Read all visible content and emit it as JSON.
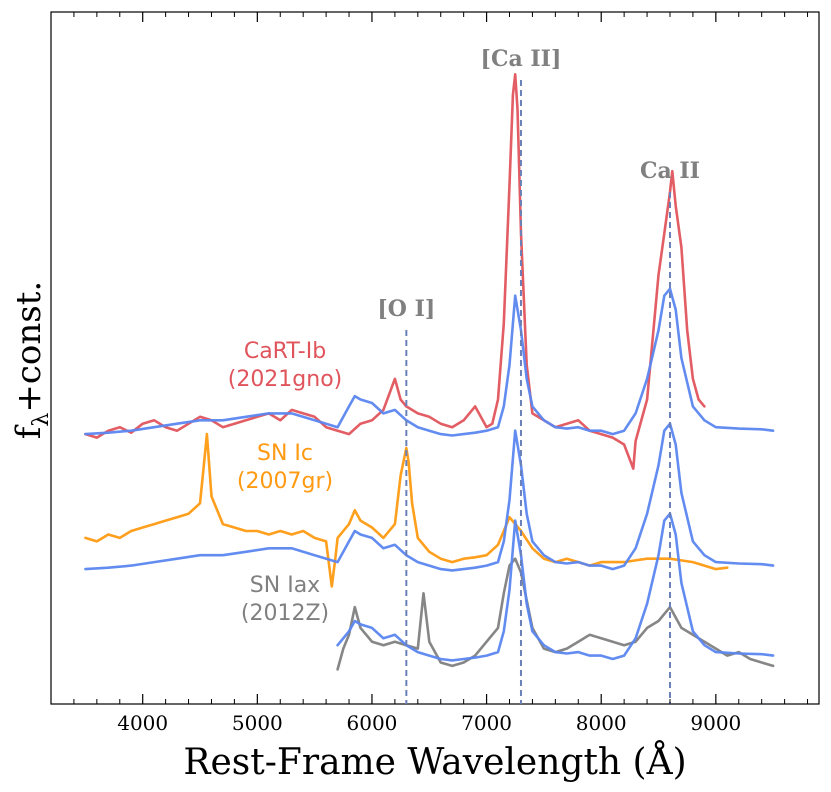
{
  "chart_data": {
    "type": "line",
    "title": "",
    "xlabel": "Rest-Frame Wavelength (Å)",
    "ylabel": "f",
    "ylabel_subscript": "λ",
    "ylabel_suffix": "+const.",
    "xlim": [
      3200,
      9900
    ],
    "ylim": [
      0,
      10
    ],
    "xticks": [
      4000,
      5000,
      6000,
      7000,
      8000,
      9000
    ],
    "xtick_labels": [
      "4000",
      "5000",
      "6000",
      "7000",
      "8000",
      "9000"
    ],
    "colors": {
      "cart": "#e0545c",
      "ic": "#ff9a12",
      "iax": "#808080",
      "model": "#5b86f0",
      "guide": "#6a80b8"
    },
    "line_markers": [
      {
        "label": "[O I]",
        "wavelength": 6300
      },
      {
        "label": "[Ca II]",
        "wavelength": 7300
      },
      {
        "label": "Ca II",
        "wavelength": 8600
      }
    ],
    "labels": [
      {
        "line1": "CaRT-Ib",
        "line2": "(2021gno)",
        "color": "#e0545c"
      },
      {
        "line1": "SN Ic",
        "line2": "(2007gr)",
        "color": "#ff9a12"
      },
      {
        "line1": "SN Iax",
        "line2": "(2012Z)",
        "color": "#808080"
      }
    ],
    "series": [
      {
        "name": "SN 2021gno (CaRT-Ib)",
        "color": "#e0545c",
        "x": [
          3500,
          3600,
          3700,
          3800,
          3900,
          4000,
          4100,
          4200,
          4300,
          4400,
          4500,
          4600,
          4700,
          4800,
          4900,
          5000,
          5100,
          5200,
          5300,
          5400,
          5500,
          5600,
          5700,
          5800,
          5900,
          6000,
          6100,
          6200,
          6250,
          6300,
          6400,
          6500,
          6600,
          6700,
          6800,
          6900,
          7000,
          7050,
          7100,
          7150,
          7200,
          7230,
          7250,
          7270,
          7300,
          7350,
          7400,
          7500,
          7600,
          7700,
          7800,
          7900,
          8000,
          8100,
          8200,
          8280,
          8300,
          8400,
          8450,
          8500,
          8550,
          8600,
          8620,
          8650,
          8700,
          8750,
          8800,
          8850,
          8900
        ],
        "y": [
          3.9,
          3.85,
          3.95,
          4.0,
          3.92,
          4.05,
          4.1,
          4.0,
          3.95,
          4.05,
          4.15,
          4.1,
          4.0,
          4.05,
          4.1,
          4.15,
          4.2,
          4.1,
          4.25,
          4.2,
          4.15,
          4.0,
          3.95,
          3.9,
          4.05,
          4.1,
          4.25,
          4.7,
          4.4,
          4.3,
          4.2,
          4.15,
          4.05,
          4.0,
          4.1,
          4.3,
          4.0,
          4.05,
          4.4,
          5.5,
          7.5,
          8.8,
          9.1,
          8.6,
          6.8,
          4.9,
          4.2,
          4.1,
          4.0,
          4.05,
          4.1,
          3.95,
          3.9,
          3.85,
          3.75,
          3.4,
          3.8,
          4.4,
          5.3,
          6.2,
          6.8,
          7.4,
          7.7,
          7.2,
          6.6,
          5.4,
          4.7,
          4.4,
          4.3
        ]
      },
      {
        "name": "Model (vs SN 2021gno)",
        "color": "#5b86f0",
        "x": [
          3500,
          3700,
          3900,
          4100,
          4300,
          4500,
          4700,
          4900,
          5100,
          5300,
          5500,
          5700,
          5800,
          5850,
          5900,
          6000,
          6100,
          6200,
          6300,
          6400,
          6500,
          6600,
          6700,
          6800,
          6900,
          7000,
          7100,
          7150,
          7200,
          7250,
          7300,
          7350,
          7400,
          7500,
          7600,
          7700,
          7800,
          7900,
          8000,
          8100,
          8200,
          8300,
          8400,
          8500,
          8550,
          8600,
          8650,
          8700,
          8800,
          8900,
          9000,
          9200,
          9400,
          9500
        ],
        "y": [
          3.9,
          3.92,
          3.95,
          4.0,
          4.05,
          4.1,
          4.1,
          4.15,
          4.2,
          4.2,
          4.1,
          4.0,
          4.3,
          4.45,
          4.4,
          4.35,
          4.2,
          4.25,
          4.1,
          4.0,
          3.95,
          3.9,
          3.88,
          3.9,
          3.92,
          3.95,
          4.0,
          4.3,
          4.9,
          5.9,
          5.4,
          4.7,
          4.3,
          4.1,
          4.0,
          3.98,
          4.0,
          3.95,
          3.95,
          3.9,
          3.95,
          4.2,
          4.7,
          5.4,
          5.9,
          6.0,
          5.7,
          5.0,
          4.3,
          4.1,
          4.0,
          3.98,
          3.97,
          3.95
        ]
      },
      {
        "name": "SN 2007gr (SN Ic)",
        "color": "#ff9a12",
        "x": [
          3500,
          3600,
          3700,
          3800,
          3900,
          4000,
          4100,
          4200,
          4300,
          4400,
          4500,
          4530,
          4560,
          4600,
          4700,
          4800,
          4900,
          5000,
          5100,
          5200,
          5300,
          5400,
          5500,
          5600,
          5650,
          5680,
          5700,
          5800,
          5850,
          5900,
          6000,
          6100,
          6200,
          6250,
          6300,
          6320,
          6350,
          6400,
          6500,
          6600,
          6700,
          6800,
          6900,
          7000,
          7100,
          7200,
          7300,
          7400,
          7500,
          7600,
          7700,
          7800,
          7900,
          8000,
          8200,
          8400,
          8600,
          8800,
          8900,
          9000,
          9100
        ],
        "y": [
          2.4,
          2.35,
          2.45,
          2.4,
          2.5,
          2.55,
          2.6,
          2.65,
          2.7,
          2.75,
          2.9,
          3.4,
          3.9,
          3.0,
          2.6,
          2.55,
          2.5,
          2.5,
          2.45,
          2.5,
          2.45,
          2.5,
          2.4,
          2.35,
          1.7,
          2.1,
          2.4,
          2.6,
          2.8,
          2.65,
          2.55,
          2.4,
          2.6,
          3.3,
          3.7,
          3.5,
          2.9,
          2.4,
          2.2,
          2.1,
          2.05,
          2.1,
          2.12,
          2.15,
          2.3,
          2.7,
          2.5,
          2.25,
          2.1,
          2.05,
          2.1,
          2.05,
          2.0,
          2.05,
          2.05,
          2.1,
          2.1,
          2.05,
          2.0,
          1.95,
          1.97
        ]
      },
      {
        "name": "Model (vs SN 2007gr)",
        "color": "#5b86f0",
        "x": [
          3500,
          3700,
          3900,
          4100,
          4300,
          4500,
          4700,
          4900,
          5100,
          5300,
          5500,
          5700,
          5800,
          5850,
          5900,
          6000,
          6100,
          6200,
          6300,
          6400,
          6500,
          6600,
          6700,
          6800,
          6900,
          7000,
          7100,
          7150,
          7200,
          7250,
          7300,
          7350,
          7400,
          7500,
          7600,
          7700,
          7800,
          7900,
          8000,
          8100,
          8200,
          8300,
          8400,
          8500,
          8550,
          8600,
          8650,
          8700,
          8800,
          8900,
          9000,
          9200,
          9400,
          9500
        ],
        "y": [
          1.95,
          1.97,
          2.0,
          2.05,
          2.1,
          2.15,
          2.15,
          2.2,
          2.25,
          2.25,
          2.15,
          2.05,
          2.35,
          2.5,
          2.45,
          2.4,
          2.25,
          2.3,
          2.15,
          2.05,
          2.0,
          1.95,
          1.93,
          1.95,
          1.97,
          2.0,
          2.05,
          2.35,
          2.95,
          3.95,
          3.45,
          2.75,
          2.35,
          2.15,
          2.05,
          2.03,
          2.05,
          2.0,
          2.0,
          1.95,
          2.0,
          2.25,
          2.75,
          3.45,
          3.95,
          4.05,
          3.75,
          3.05,
          2.35,
          2.15,
          2.05,
          2.03,
          2.02,
          2.0
        ]
      },
      {
        "name": "SN 2012Z (SN Iax)",
        "color": "#808080",
        "x": [
          5700,
          5750,
          5800,
          5850,
          5900,
          6000,
          6100,
          6200,
          6300,
          6400,
          6450,
          6500,
          6550,
          6600,
          6700,
          6800,
          6900,
          7000,
          7100,
          7150,
          7200,
          7250,
          7300,
          7350,
          7400,
          7500,
          7600,
          7700,
          7800,
          7900,
          8000,
          8100,
          8200,
          8300,
          8400,
          8500,
          8600,
          8650,
          8700,
          8800,
          8900,
          9000,
          9100,
          9200,
          9300,
          9400,
          9500
        ],
        "y": [
          0.5,
          0.8,
          1.0,
          1.4,
          1.1,
          0.9,
          0.85,
          0.9,
          0.85,
          0.8,
          1.6,
          0.9,
          0.75,
          0.6,
          0.55,
          0.6,
          0.7,
          0.9,
          1.1,
          1.6,
          2.0,
          2.1,
          1.9,
          1.5,
          1.1,
          0.8,
          0.75,
          0.8,
          0.9,
          1.0,
          0.95,
          0.9,
          0.85,
          0.9,
          1.1,
          1.2,
          1.4,
          1.25,
          1.1,
          1.0,
          0.9,
          0.8,
          0.7,
          0.75,
          0.65,
          0.6,
          0.55
        ]
      },
      {
        "name": "Model (vs SN 2012Z)",
        "color": "#5b86f0",
        "x": [
          5700,
          5800,
          5850,
          5900,
          6000,
          6100,
          6200,
          6300,
          6400,
          6500,
          6600,
          6700,
          6800,
          6900,
          7000,
          7100,
          7150,
          7200,
          7250,
          7300,
          7350,
          7400,
          7500,
          7600,
          7700,
          7800,
          7900,
          8000,
          8100,
          8200,
          8300,
          8400,
          8500,
          8550,
          8600,
          8650,
          8700,
          8800,
          8900,
          9000,
          9200,
          9400,
          9500
        ],
        "y": [
          0.85,
          1.05,
          1.2,
          1.15,
          1.1,
          0.95,
          1.0,
          0.85,
          0.75,
          0.7,
          0.65,
          0.63,
          0.65,
          0.67,
          0.7,
          0.75,
          1.05,
          1.65,
          2.65,
          2.15,
          1.45,
          1.05,
          0.85,
          0.75,
          0.73,
          0.75,
          0.7,
          0.7,
          0.65,
          0.7,
          0.95,
          1.45,
          2.15,
          2.65,
          2.75,
          2.45,
          1.75,
          1.05,
          0.85,
          0.75,
          0.73,
          0.72,
          0.7
        ]
      }
    ]
  }
}
